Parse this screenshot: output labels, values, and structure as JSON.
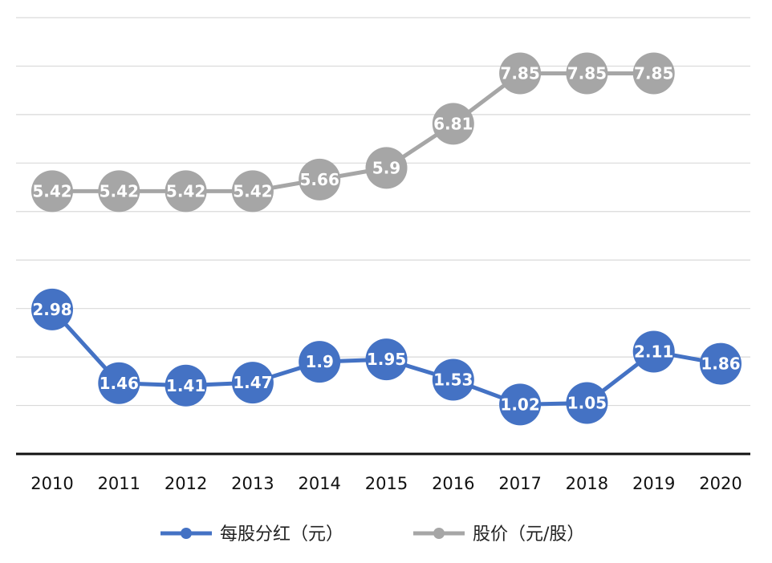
{
  "chart_data": {
    "type": "line",
    "x": [
      "2010",
      "2011",
      "2012",
      "2013",
      "2014",
      "2015",
      "2016",
      "2017",
      "2018",
      "2019",
      "2020"
    ],
    "series": [
      {
        "name": "每股分红（元）",
        "color": "#4472c4",
        "values": [
          2.98,
          1.46,
          1.41,
          1.47,
          1.9,
          1.95,
          1.53,
          1.02,
          1.05,
          2.11,
          1.86
        ],
        "labels": [
          "2.98",
          "1.46",
          "1.41",
          "1.47",
          "1.9",
          "1.95",
          "1.53",
          "1.02",
          "1.05",
          "2.11",
          "1.86"
        ]
      },
      {
        "name": "股价（元/股）",
        "color": "#a6a6a6",
        "values": [
          5.42,
          5.42,
          5.42,
          5.42,
          5.66,
          5.9,
          6.81,
          7.85,
          7.85,
          7.85,
          null
        ],
        "labels": [
          "5.42",
          "5.42",
          "5.42",
          "5.42",
          "5.66",
          "5.9",
          "6.81",
          "7.85",
          "7.85",
          "7.85",
          ""
        ]
      }
    ],
    "ylim": [
      0,
      9
    ],
    "grid": true,
    "legend_position": "bottom",
    "title": "",
    "xlabel": "",
    "ylabel": ""
  }
}
